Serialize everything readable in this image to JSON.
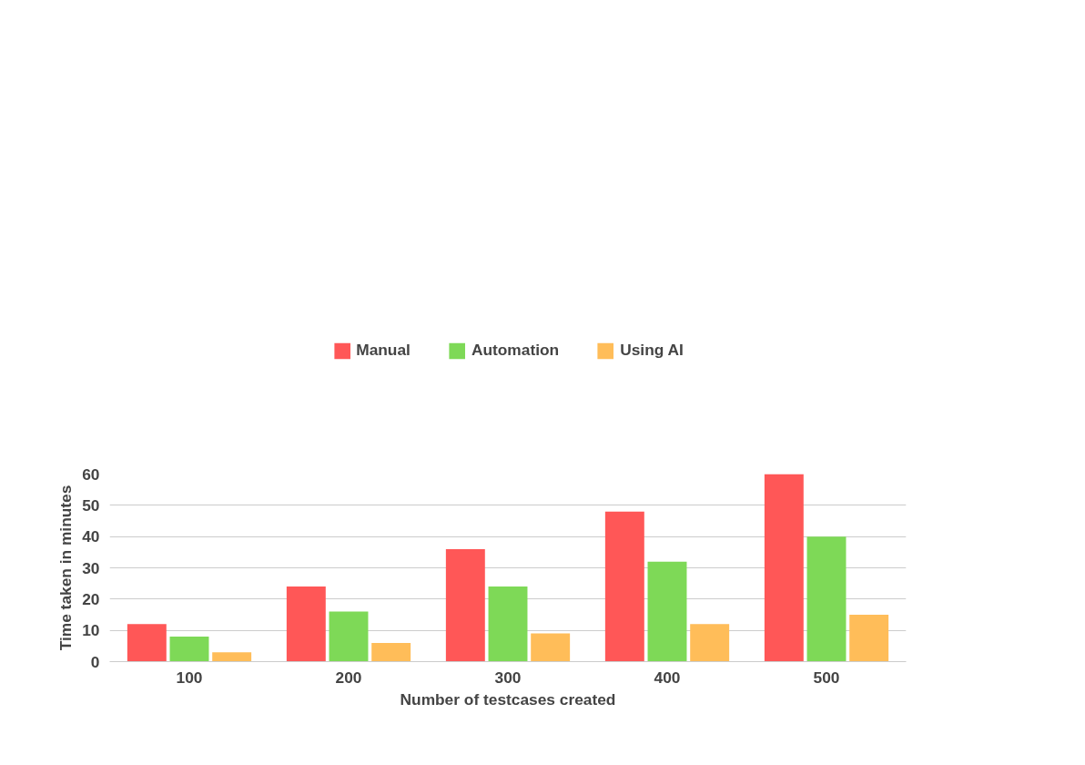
{
  "chart_data": {
    "type": "bar",
    "xlabel": "Number of testcases created",
    "ylabel": "Time taken in minutes",
    "categories": [
      "100",
      "200",
      "300",
      "400",
      "500"
    ],
    "series": [
      {
        "name": "Manual",
        "color": "#ff5757",
        "values": [
          12,
          24,
          36,
          48,
          60
        ]
      },
      {
        "name": "Automation",
        "color": "#7ed957",
        "values": [
          8,
          16,
          24,
          32,
          40
        ]
      },
      {
        "name": "Using AI",
        "color": "#ffbd59",
        "values": [
          3,
          6,
          9,
          12,
          15
        ]
      }
    ],
    "ylim": [
      0,
      60
    ],
    "yticks": [
      0,
      10,
      20,
      30,
      40,
      50,
      60
    ],
    "grid": "y",
    "legend": "top"
  }
}
